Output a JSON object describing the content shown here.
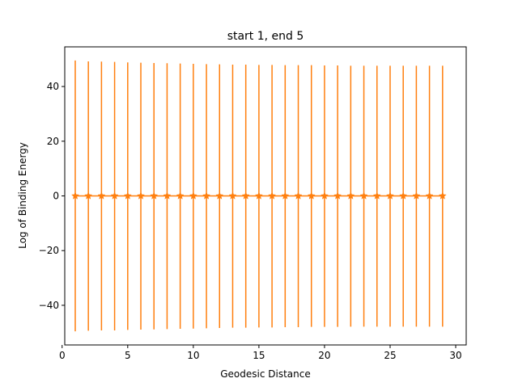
{
  "chart_data": {
    "type": "line",
    "title": "start 1, end 5",
    "xlabel": "Geodesic Distance",
    "ylabel": "Log of Binding Energy",
    "xlim": [
      0.2,
      30.8
    ],
    "ylim": [
      -54.5,
      54.5
    ],
    "xticks": [
      0,
      5,
      10,
      15,
      20,
      25,
      30
    ],
    "xtick_labels": [
      "0",
      "5",
      "10",
      "15",
      "20",
      "25",
      "30"
    ],
    "yticks": [
      -40,
      -20,
      0,
      20,
      40
    ],
    "ytick_labels": [
      "−40",
      "−20",
      "0",
      "20",
      "40"
    ],
    "grid": false,
    "series": [
      {
        "marker": "star",
        "color": "#ff7f0e",
        "x": [
          1,
          2,
          3,
          4,
          5,
          6,
          7,
          8,
          9,
          10,
          11,
          12,
          13,
          14,
          15,
          16,
          17,
          18,
          19,
          20,
          21,
          22,
          23,
          24,
          25,
          26,
          27,
          28,
          29
        ],
        "y": [
          0,
          0,
          0,
          0,
          0,
          0,
          0,
          0,
          0,
          0,
          0,
          0,
          0,
          0,
          0,
          0,
          0,
          0,
          0,
          0,
          0,
          0,
          0,
          0,
          0,
          0,
          0,
          0,
          0
        ],
        "err_upper": [
          49.5,
          49.2,
          49.1,
          49.0,
          48.8,
          48.7,
          48.6,
          48.5,
          48.4,
          48.3,
          48.2,
          48.1,
          48.0,
          48.0,
          47.9,
          47.9,
          47.8,
          47.8,
          47.8,
          47.7,
          47.7,
          47.6,
          47.6,
          47.6,
          47.6,
          47.6,
          47.6,
          47.6,
          47.6
        ],
        "err_lower": [
          -49.5,
          -49.3,
          -49.2,
          -49.2,
          -49.0,
          -48.9,
          -48.8,
          -48.7,
          -48.6,
          -48.5,
          -48.4,
          -48.3,
          -48.2,
          -48.2,
          -48.1,
          -48.1,
          -48.0,
          -48.0,
          -47.9,
          -47.9,
          -47.9,
          -47.8,
          -47.8,
          -47.8,
          -47.8,
          -47.8,
          -47.8,
          -47.8,
          -47.8
        ]
      }
    ]
  }
}
